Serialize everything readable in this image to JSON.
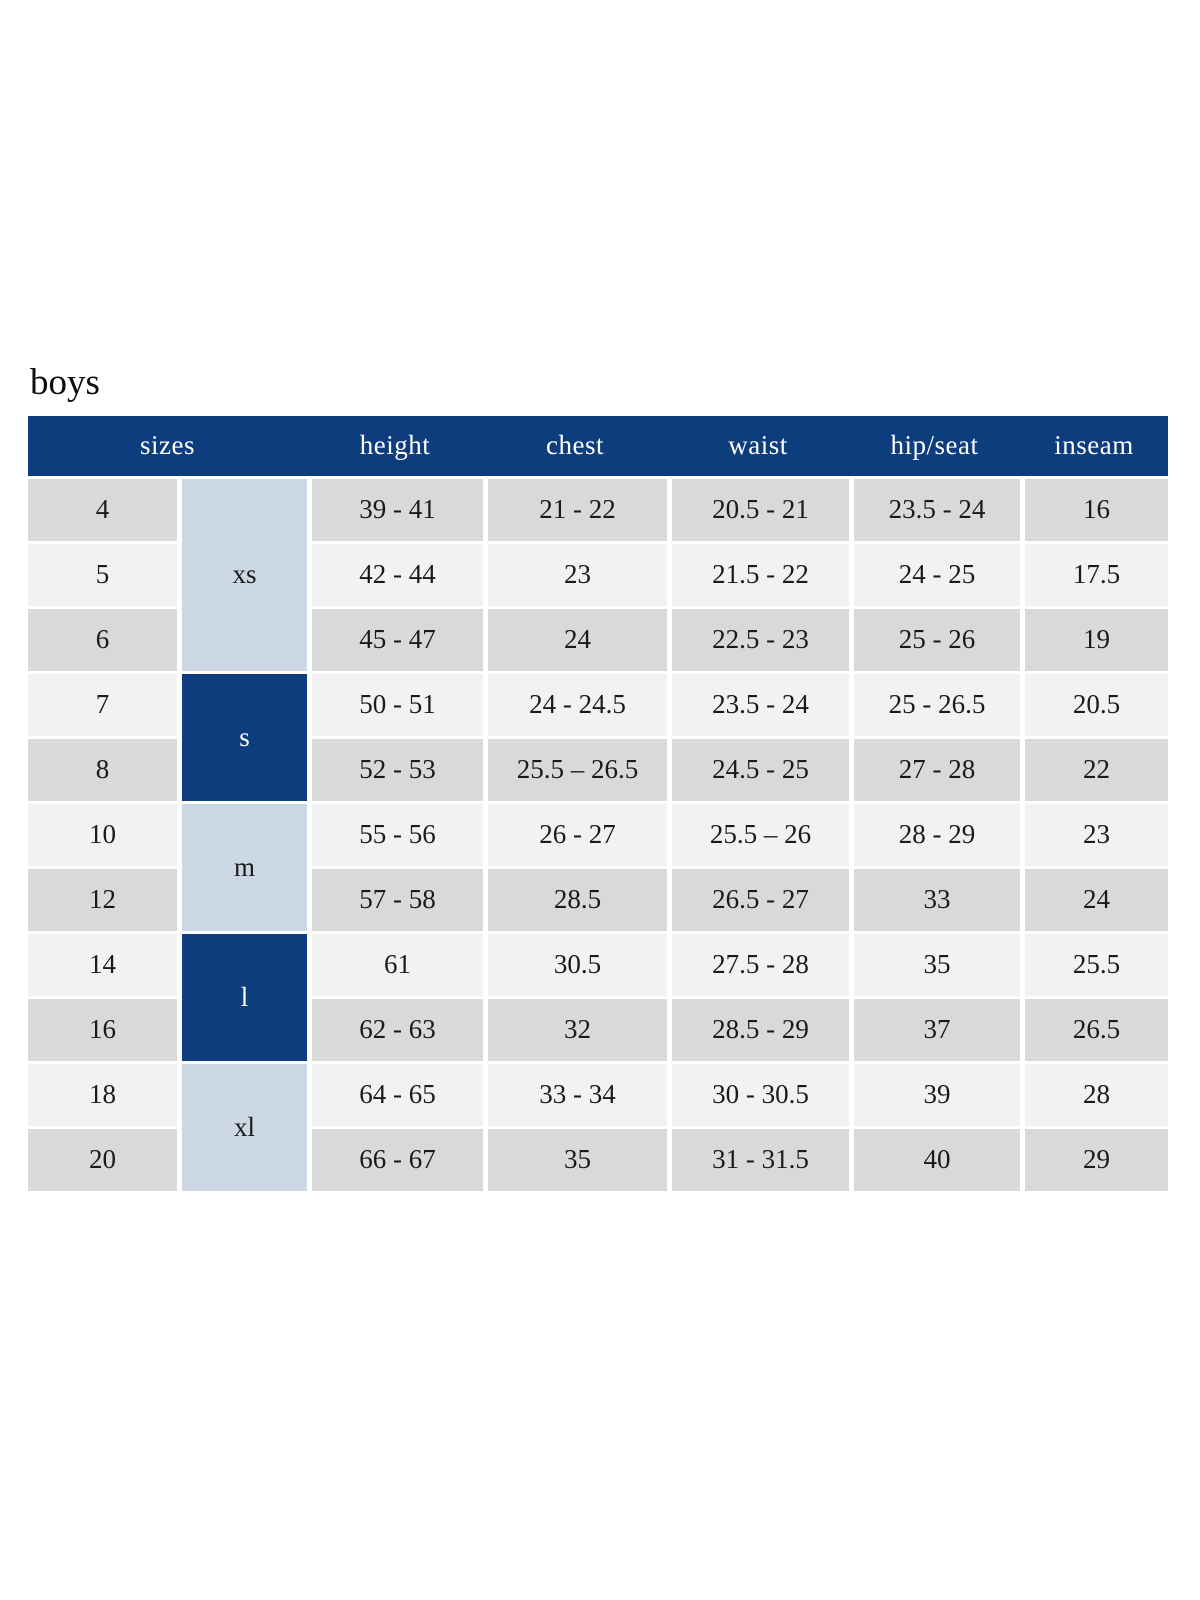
{
  "page": {
    "title": "boys"
  },
  "table": {
    "headers": [
      "sizes",
      "height",
      "chest",
      "waist",
      "hip/seat",
      "inseam"
    ],
    "size_groups": [
      {
        "label": "xs",
        "tone": "light",
        "span": 3
      },
      {
        "label": "s",
        "tone": "dark",
        "span": 2
      },
      {
        "label": "m",
        "tone": "light",
        "span": 2
      },
      {
        "label": "l",
        "tone": "dark",
        "span": 2
      },
      {
        "label": "xl",
        "tone": "light",
        "span": 2
      }
    ],
    "rows": [
      {
        "size": "4",
        "height": "39 - 41",
        "chest": "21 - 22",
        "waist": "20.5 - 21",
        "hip_seat": "23.5 - 24",
        "inseam": "16"
      },
      {
        "size": "5",
        "height": "42 - 44",
        "chest": "23",
        "waist": "21.5 - 22",
        "hip_seat": "24 - 25",
        "inseam": "17.5"
      },
      {
        "size": "6",
        "height": "45 - 47",
        "chest": "24",
        "waist": "22.5 - 23",
        "hip_seat": "25 - 26",
        "inseam": "19"
      },
      {
        "size": "7",
        "height": "50 - 51",
        "chest": "24 - 24.5",
        "waist": "23.5 - 24",
        "hip_seat": "25 - 26.5",
        "inseam": "20.5"
      },
      {
        "size": "8",
        "height": "52 - 53",
        "chest": "25.5 – 26.5",
        "waist": "24.5 - 25",
        "hip_seat": "27 - 28",
        "inseam": "22"
      },
      {
        "size": "10",
        "height": "55 - 56",
        "chest": "26 - 27",
        "waist": "25.5 – 26",
        "hip_seat": "28 - 29",
        "inseam": "23"
      },
      {
        "size": "12",
        "height": "57 - 58",
        "chest": "28.5",
        "waist": "26.5 - 27",
        "hip_seat": "33",
        "inseam": "24"
      },
      {
        "size": "14",
        "height": "61",
        "chest": "30.5",
        "waist": "27.5 - 28",
        "hip_seat": "35",
        "inseam": "25.5"
      },
      {
        "size": "16",
        "height": "62 - 63",
        "chest": "32",
        "waist": "28.5 - 29",
        "hip_seat": "37",
        "inseam": "26.5"
      },
      {
        "size": "18",
        "height": "64 - 65",
        "chest": "33 - 34",
        "waist": "30 - 30.5",
        "hip_seat": "39",
        "inseam": "28"
      },
      {
        "size": "20",
        "height": "66 - 67",
        "chest": "35",
        "waist": "31 - 31.5",
        "hip_seat": "40",
        "inseam": "29"
      }
    ]
  },
  "colors": {
    "header_bg": "#0e3d7d",
    "block_dark_bg": "#0e3d7d",
    "block_light_bg": "#ccd7e4",
    "row_gray": "#d9d9d9",
    "row_light": "#f2f2f2",
    "cell_text": "#1a1a1a",
    "header_text": "#ffffff",
    "separator": "#ffffff",
    "page_bg": "#ffffff"
  }
}
